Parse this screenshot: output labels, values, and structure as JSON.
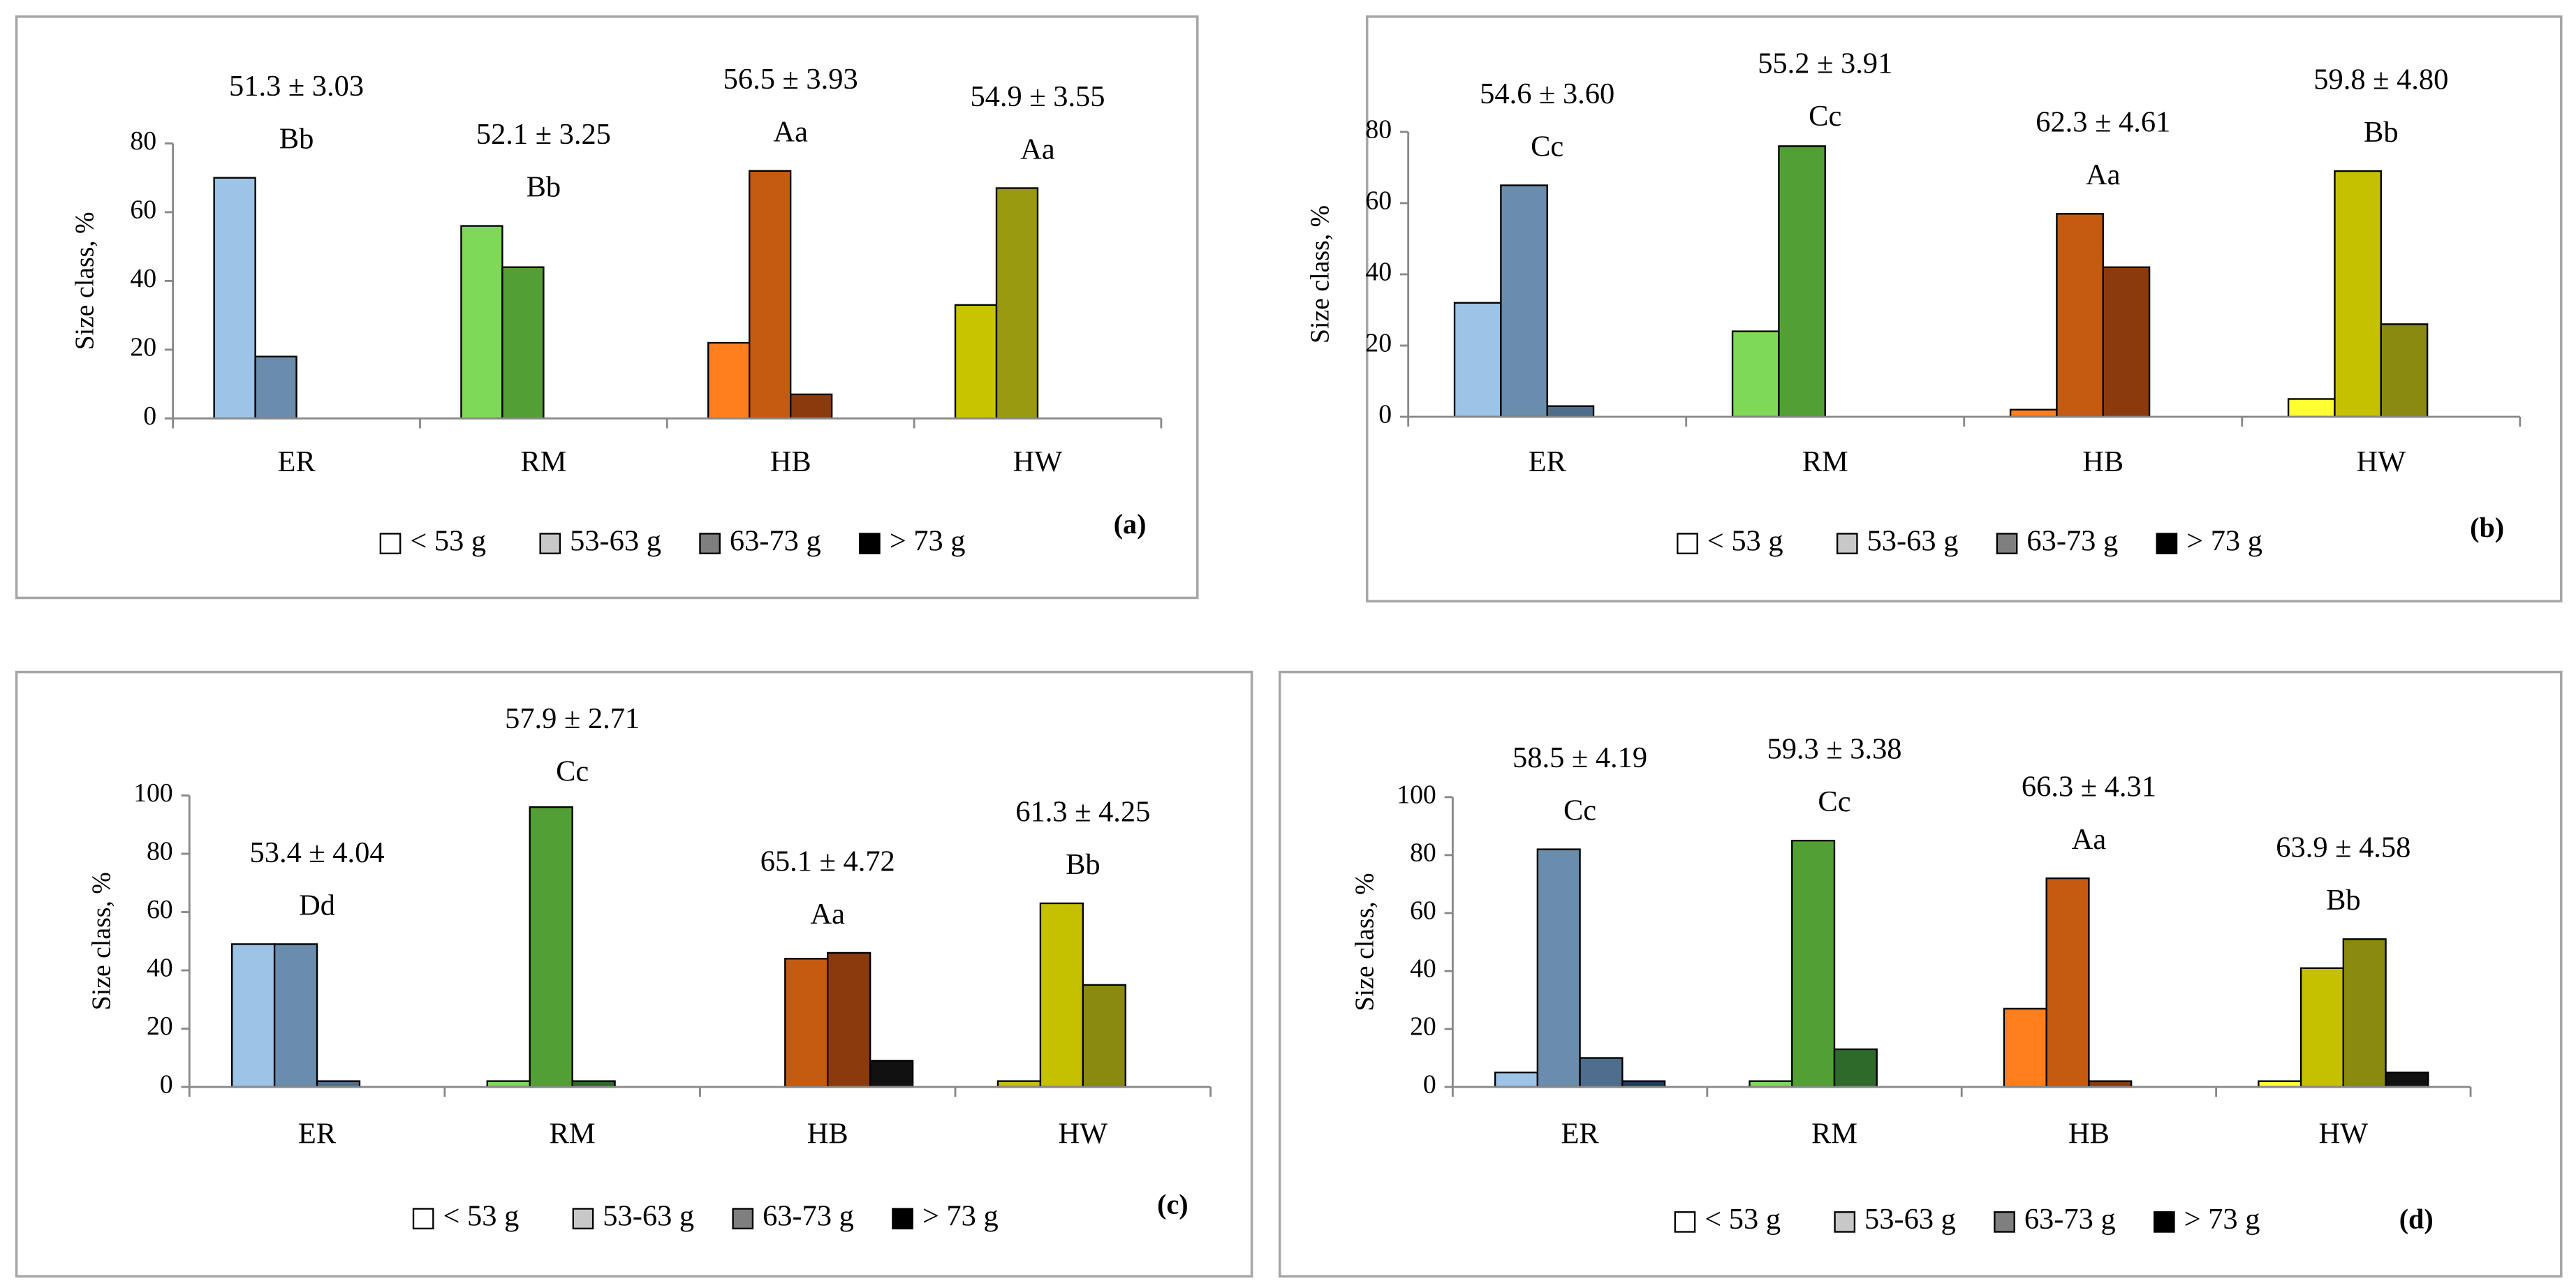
{
  "chart_data": [
    {
      "type": "bar",
      "panel_label": "(a)",
      "ylabel": "Size class, %",
      "categories": [
        "ER",
        "RM",
        "HB",
        "HW"
      ],
      "ylim": [
        0,
        80
      ],
      "yticks": [
        0,
        20,
        40,
        60,
        80
      ],
      "series": [
        {
          "name": "< 53 g",
          "color": "#ffffff",
          "bar_colors": [
            "#9dc3e6",
            "#7ed957",
            "#ff7f1f",
            "#c8c400"
          ],
          "values": [
            70,
            56,
            22,
            33
          ]
        },
        {
          "name": "53-63 g",
          "color": "#c8c8c8",
          "bar_colors": [
            "#6a8cad",
            "#52a035",
            "#c55a11",
            "#9a9a10"
          ],
          "values": [
            18,
            44,
            72,
            67
          ]
        },
        {
          "name": "63-73 g",
          "color": "#7f7f7f",
          "bar_colors": [
            "#4f6e8e",
            "#2e6b2a",
            "#8b3a0e",
            "#6a6a10"
          ],
          "values": [
            0,
            0,
            7,
            0
          ]
        },
        {
          "name": "> 73 g",
          "color": "#000000",
          "bar_colors": [
            "#1f3a5a",
            "#1a4a1a",
            "#4a1f08",
            "#3a3a00"
          ],
          "values": [
            0,
            0,
            0,
            0
          ]
        }
      ],
      "annotations": [
        {
          "mean": "51.3 ± 3.03",
          "group": "Bb"
        },
        {
          "mean": "52.1 ± 3.25",
          "group": "Bb"
        },
        {
          "mean": "56.5 ± 3.93",
          "group": "Aa"
        },
        {
          "mean": "54.9 ± 3.55",
          "group": "Aa"
        }
      ]
    },
    {
      "type": "bar",
      "panel_label": "(b)",
      "ylabel": "Size class, %",
      "categories": [
        "ER",
        "RM",
        "HB",
        "HW"
      ],
      "ylim": [
        0,
        80
      ],
      "yticks": [
        0,
        20,
        40,
        60,
        80
      ],
      "series": [
        {
          "name": "< 53 g",
          "color": "#ffffff",
          "bar_colors": [
            "#9dc3e6",
            "#7ed957",
            "#ff7f1f",
            "#ffff33"
          ],
          "values": [
            32,
            24,
            2,
            5
          ]
        },
        {
          "name": "53-63 g",
          "color": "#c8c8c8",
          "bar_colors": [
            "#6a8cad",
            "#52a035",
            "#c55a11",
            "#c5c000"
          ],
          "values": [
            65,
            76,
            57,
            69
          ]
        },
        {
          "name": "63-73 g",
          "color": "#7f7f7f",
          "bar_colors": [
            "#4f6e8e",
            "#2e6b2a",
            "#8b3a0e",
            "#8a8a10"
          ],
          "values": [
            3,
            0,
            42,
            26
          ]
        },
        {
          "name": "> 73 g",
          "color": "#000000",
          "bar_colors": [
            "#1f3a5a",
            "#1a4a1a",
            "#4a1f08",
            "#3a3a00"
          ],
          "values": [
            0,
            0,
            0,
            0
          ]
        }
      ],
      "annotations": [
        {
          "mean": "54.6 ± 3.60",
          "group": "Cc"
        },
        {
          "mean": "55.2 ± 3.91",
          "group": "Cc"
        },
        {
          "mean": "62.3 ± 4.61",
          "group": "Aa"
        },
        {
          "mean": "59.8 ± 4.80",
          "group": "Bb"
        }
      ]
    },
    {
      "type": "bar",
      "panel_label": "(c)",
      "ylabel": "Size class, %",
      "categories": [
        "ER",
        "RM",
        "HB",
        "HW"
      ],
      "ylim": [
        0,
        100
      ],
      "yticks": [
        0,
        20,
        40,
        60,
        80,
        100
      ],
      "series": [
        {
          "name": "< 53 g",
          "color": "#ffffff",
          "bar_colors": [
            "#9dc3e6",
            "#7ed957",
            "#ff7f1f",
            "#c5c000"
          ],
          "values": [
            49,
            2,
            0,
            2
          ]
        },
        {
          "name": "53-63 g",
          "color": "#c8c8c8",
          "bar_colors": [
            "#6a8cad",
            "#52a035",
            "#c55a11",
            "#c5c000"
          ],
          "values": [
            49,
            96,
            44,
            63
          ]
        },
        {
          "name": "63-73 g",
          "color": "#7f7f7f",
          "bar_colors": [
            "#4f6e8e",
            "#2e6b2a",
            "#8b3a0e",
            "#8a8a10"
          ],
          "values": [
            2,
            2,
            46,
            35
          ]
        },
        {
          "name": "> 73 g",
          "color": "#000000",
          "bar_colors": [
            "#1f3a5a",
            "#1a4a1a",
            "#111111",
            "#3a3a00"
          ],
          "values": [
            0,
            0,
            9,
            0
          ]
        }
      ],
      "annotations": [
        {
          "mean": "53.4 ± 4.04",
          "group": "Dd"
        },
        {
          "mean": "57.9 ± 2.71",
          "group": "Cc"
        },
        {
          "mean": "65.1 ± 4.72",
          "group": "Aa"
        },
        {
          "mean": "61.3 ± 4.25",
          "group": "Bb"
        }
      ]
    },
    {
      "type": "bar",
      "panel_label": "(d)",
      "ylabel": "Size class, %",
      "categories": [
        "ER",
        "RM",
        "HB",
        "HW"
      ],
      "ylim": [
        0,
        100
      ],
      "yticks": [
        0,
        20,
        40,
        60,
        80,
        100
      ],
      "series": [
        {
          "name": "< 53 g",
          "color": "#ffffff",
          "bar_colors": [
            "#9dc3e6",
            "#7ed957",
            "#ff7f1f",
            "#ffff33"
          ],
          "values": [
            5,
            2,
            27,
            2
          ]
        },
        {
          "name": "53-63 g",
          "color": "#c8c8c8",
          "bar_colors": [
            "#6a8cad",
            "#52a035",
            "#c55a11",
            "#c5c000"
          ],
          "values": [
            82,
            85,
            72,
            41
          ]
        },
        {
          "name": "63-73 g",
          "color": "#7f7f7f",
          "bar_colors": [
            "#4f6e8e",
            "#2e6b2a",
            "#8b3a0e",
            "#8a8a10"
          ],
          "values": [
            10,
            13,
            2,
            51
          ]
        },
        {
          "name": "> 73 g",
          "color": "#000000",
          "bar_colors": [
            "#1f3a5a",
            "#1a4a1a",
            "#4a1f08",
            "#111111"
          ],
          "values": [
            2,
            0,
            0,
            5
          ]
        }
      ],
      "annotations": [
        {
          "mean": "58.5 ± 4.19",
          "group": "Cc"
        },
        {
          "mean": "59.3 ± 3.38",
          "group": "Cc"
        },
        {
          "mean": "66.3 ± 4.31",
          "group": "Aa"
        },
        {
          "mean": "63.9 ± 4.58",
          "group": "Bb"
        }
      ]
    }
  ]
}
